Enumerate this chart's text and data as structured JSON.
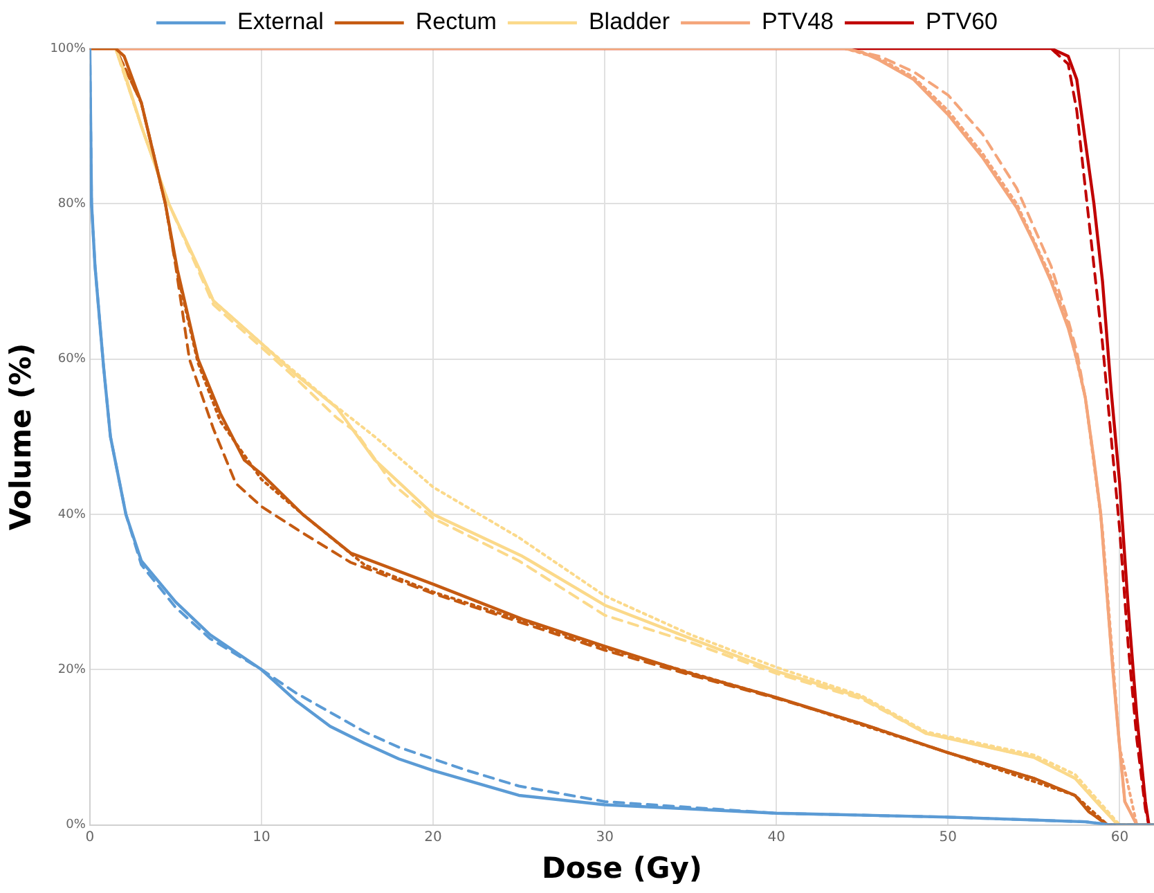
{
  "chart_data": {
    "type": "line",
    "xlabel": "Dose (Gy)",
    "ylabel": "Volume (%)",
    "xlim": [
      0,
      62
    ],
    "xticks": [
      0,
      10,
      20,
      30,
      40,
      50,
      60
    ],
    "ylim": [
      0,
      100
    ],
    "yticks": [
      {
        "value": 0,
        "label": "0%"
      },
      {
        "value": 20,
        "label": "20%"
      },
      {
        "value": 40,
        "label": "40%"
      },
      {
        "value": 60,
        "label": "60%"
      },
      {
        "value": 80,
        "label": "80%"
      },
      {
        "value": 100,
        "label": "100%"
      }
    ],
    "grid": true,
    "legend": "top",
    "marker": "none",
    "series": [
      {
        "name": "External",
        "color": "#5b9bd5",
        "line_style": "solid",
        "x": [
          0,
          0.1,
          0.3,
          0.8,
          1.2,
          2.1,
          3,
          5,
          7,
          10,
          12,
          14,
          16,
          18,
          20,
          25,
          30,
          40,
          50,
          58,
          59.5,
          62
        ],
        "values": [
          100,
          80,
          72,
          59,
          50,
          40,
          34,
          28.7,
          24.5,
          20,
          16,
          12.7,
          10.5,
          8.5,
          7,
          3.8,
          2.6,
          1.5,
          1,
          0.4,
          0,
          0
        ]
      },
      {
        "name": "Rectum",
        "color": "#c55a11",
        "line_style": "solid",
        "x": [
          0,
          1.5,
          2,
          3,
          4.4,
          5.1,
          6.3,
          7.6,
          9,
          10,
          12.4,
          15.2,
          20,
          25.2,
          30,
          35,
          40,
          45,
          50,
          55,
          57.4,
          58.2,
          59.3,
          62
        ],
        "values": [
          100,
          100,
          99,
          93,
          80,
          71.5,
          60,
          53,
          47,
          45.2,
          40,
          35,
          31,
          26.5,
          23,
          19.5,
          16.4,
          13,
          9.3,
          6,
          3.8,
          1.7,
          0,
          0
        ]
      },
      {
        "name": "Bladder",
        "color": "#fbd98a",
        "line_style": "solid",
        "x": [
          0,
          1.5,
          2,
          3,
          4.6,
          6.4,
          7.2,
          10,
          12,
          14.4,
          16.6,
          20,
          25.2,
          30,
          35,
          40,
          45,
          48.7,
          55,
          57.4,
          58.8,
          59.9,
          62
        ],
        "values": [
          100,
          100,
          97,
          90,
          80,
          71.5,
          67.5,
          62,
          58,
          53.7,
          47,
          40,
          34.6,
          28.3,
          24,
          19.8,
          16.4,
          11.8,
          8.7,
          6,
          2.6,
          0,
          0
        ]
      },
      {
        "name": "PTV48",
        "color": "#f4a57a",
        "line_style": "solid",
        "x": [
          0,
          44,
          45,
          46,
          48,
          50,
          52,
          54,
          55,
          56,
          57,
          57.5,
          58,
          58.5,
          58.9,
          59.6,
          60,
          60.3,
          61,
          62
        ],
        "values": [
          100,
          100,
          99.5,
          98.5,
          96,
          91.5,
          86,
          79.5,
          75,
          70,
          64,
          60,
          55,
          47,
          40,
          20,
          10,
          3,
          0,
          0
        ]
      },
      {
        "name": "PTV60",
        "color": "#c00000",
        "line_style": "solid",
        "x": [
          0,
          56,
          57,
          57.5,
          58,
          58.5,
          59,
          59.5,
          60,
          60.5,
          61,
          61.5,
          61.7
        ],
        "values": [
          100,
          100,
          99,
          96,
          88,
          80,
          70,
          56,
          44,
          28,
          14,
          3,
          0
        ]
      },
      {
        "color": "#5b9bd5",
        "line_style": "dashed",
        "x": [
          0,
          0.1,
          0.3,
          0.8,
          1.2,
          2.1,
          3,
          5,
          7,
          10,
          12,
          14,
          16,
          18,
          20,
          22,
          25,
          30,
          40,
          50,
          58,
          59.5,
          62
        ],
        "values": [
          100,
          80,
          72,
          59,
          50,
          40,
          33.5,
          28,
          24,
          20,
          17,
          14.5,
          12,
          10,
          8.5,
          7,
          5,
          3,
          1.5,
          1,
          0.4,
          0,
          0
        ]
      },
      {
        "color": "#c55a11",
        "line_style": "dashed",
        "x": [
          0,
          1.5,
          3,
          4.4,
          5,
          5.8,
          7.2,
          8.5,
          10,
          12.4,
          15.2,
          20,
          25.2,
          30,
          35,
          40,
          45,
          50,
          55,
          57.4,
          58.2,
          59.3,
          62
        ],
        "values": [
          100,
          100,
          93,
          80,
          72,
          60,
          51,
          44,
          41,
          37.6,
          33.8,
          29.8,
          26,
          22.5,
          19.3,
          16.3,
          13,
          9.3,
          6,
          3.8,
          1.7,
          0,
          0
        ]
      },
      {
        "color": "#fbd98a",
        "line_style": "dashed",
        "x": [
          0,
          1.5,
          3,
          4.6,
          7.2,
          10,
          12,
          14.4,
          15.5,
          17.6,
          20,
          25,
          30,
          35,
          40,
          45,
          48.7,
          55,
          57.4,
          58.8,
          59.9,
          62
        ],
        "values": [
          100,
          100,
          90,
          80,
          67,
          61.5,
          57.5,
          52.4,
          50.6,
          44,
          39.5,
          34,
          27,
          23.5,
          19.5,
          16.2,
          11.8,
          8.7,
          6,
          2.6,
          0,
          0
        ]
      },
      {
        "color": "#f4a57a",
        "line_style": "dashed",
        "x": [
          0,
          44,
          46,
          48,
          50,
          52,
          54,
          55,
          56,
          57,
          57.5,
          58,
          58.5,
          58.9,
          59.6,
          60,
          60.3,
          61,
          62
        ],
        "values": [
          100,
          100,
          99,
          97,
          94,
          89,
          82,
          77,
          72,
          65,
          61,
          55,
          47,
          40,
          20,
          10,
          3,
          0,
          0
        ]
      },
      {
        "color": "#c00000",
        "line_style": "dashed",
        "x": [
          0,
          56,
          57,
          57.5,
          58,
          58.5,
          59,
          59.5,
          60,
          60.5,
          61,
          61.5,
          61.7
        ],
        "values": [
          100,
          100,
          98,
          92,
          82,
          72,
          62,
          50,
          38,
          23,
          11,
          2,
          0
        ]
      },
      {
        "color": "#c55a11",
        "line_style": "dotted",
        "x": [
          0,
          1.5,
          3,
          4.4,
          5.1,
          6.3,
          7.6,
          10,
          12.4,
          16,
          20,
          25.2,
          30,
          40,
          50,
          57.4,
          59.3,
          62
        ],
        "values": [
          100,
          100,
          93,
          80,
          71,
          59.5,
          52,
          44.5,
          40,
          33.5,
          30,
          26.3,
          22.8,
          16.4,
          9.3,
          3.8,
          0,
          0
        ]
      },
      {
        "color": "#fbd98a",
        "line_style": "dotted",
        "x": [
          0,
          1.5,
          3,
          4.6,
          7.2,
          10,
          14,
          16.6,
          20,
          25,
          30,
          35,
          40,
          45,
          48.7,
          55,
          57.4,
          59,
          60,
          62
        ],
        "values": [
          100,
          100,
          90,
          80,
          67.5,
          62,
          54.5,
          50,
          43.5,
          37,
          29.5,
          24.5,
          20.3,
          16.6,
          12,
          9,
          6.5,
          2.5,
          0,
          0
        ]
      },
      {
        "color": "#f4a57a",
        "line_style": "dotted",
        "x": [
          0,
          44,
          46,
          48,
          50,
          52,
          54,
          56,
          57,
          58,
          59,
          60,
          61,
          62
        ],
        "values": [
          100,
          100,
          98.7,
          96.3,
          92,
          86.5,
          80,
          70.5,
          64.5,
          55,
          38,
          10,
          0,
          0
        ]
      }
    ]
  }
}
